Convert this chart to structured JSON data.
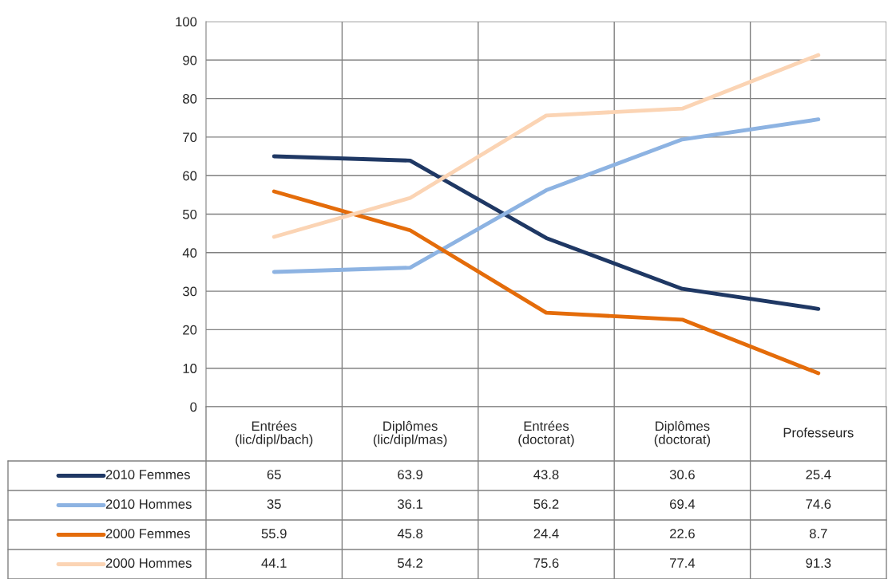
{
  "chart_data": {
    "type": "line",
    "categories": [
      "Entrées\n(lic/dipl/bach)",
      "Diplômes\n(lic/dipl/mas)",
      "Entrées\n(doctorat)",
      "Diplômes\n(doctorat)",
      "Professeurs"
    ],
    "series": [
      {
        "name": "2010 Femmes",
        "color": "#1f3864",
        "values": [
          65,
          63.9,
          43.8,
          30.6,
          25.4
        ]
      },
      {
        "name": "2010 Hommes",
        "color": "#8db3e2",
        "values": [
          35,
          36.1,
          56.2,
          69.4,
          74.6
        ]
      },
      {
        "name": "2000 Femmes",
        "color": "#e46c0a",
        "values": [
          55.9,
          45.8,
          24.4,
          22.6,
          8.7
        ]
      },
      {
        "name": "2000 Hommes",
        "color": "#fbd4b4",
        "values": [
          44.1,
          54.2,
          75.6,
          77.4,
          91.3
        ]
      }
    ],
    "ylim": [
      0,
      100
    ],
    "yticks": [
      0,
      10,
      20,
      30,
      40,
      50,
      60,
      70,
      80,
      90,
      100
    ],
    "grid": true,
    "legend": "bottom",
    "data_labels": true,
    "marker": "none",
    "line_style": "solid"
  }
}
